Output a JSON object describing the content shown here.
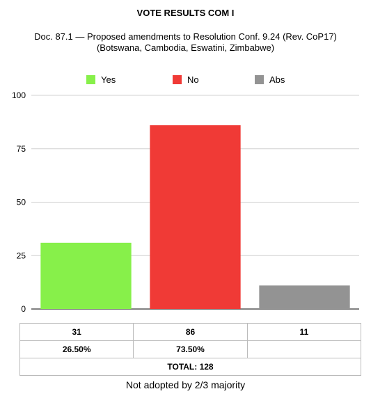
{
  "chart_data": {
    "type": "bar",
    "title": "VOTE RESULTS COM I",
    "subtitle_lines": [
      "Doc. 87.1 — Proposed amendments to Resolution Conf. 9.24 (Rev. CoP17)",
      "(Botswana, Cambodia, Eswatini, Zimbabwe)"
    ],
    "categories": [
      "Yes",
      "No",
      "Abs"
    ],
    "values": [
      31,
      86,
      11
    ],
    "colors": [
      "#87f04a",
      "#f03a36",
      "#939393"
    ],
    "ylim": [
      0,
      100
    ],
    "yticks": [
      "0",
      "25",
      "50",
      "75",
      "100"
    ],
    "ytick_values": [
      0,
      25,
      50,
      75,
      100
    ],
    "grid": true,
    "legend_position": "top"
  },
  "table": {
    "counts": [
      "31",
      "86",
      "11"
    ],
    "percentages": [
      "26.50%",
      "73.50%",
      ""
    ],
    "total": "TOTAL: 128"
  },
  "footnote": "Not adopted by 2/3 majority"
}
